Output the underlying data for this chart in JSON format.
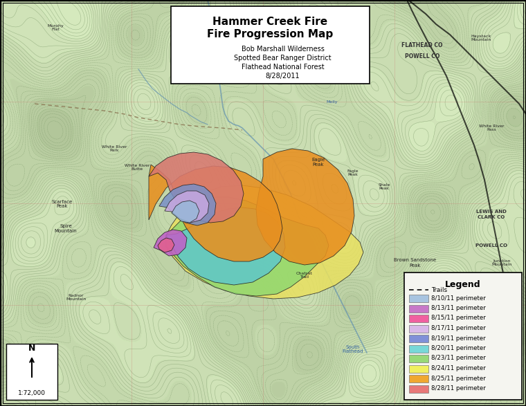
{
  "title_line1": "Hammer Creek Fire",
  "title_line2": "Fire Progression Map",
  "subtitle_lines": [
    "Bob Marshall Wilderness",
    "Spotted Bear Ranger District",
    "Flathead National Forest",
    "8/28/2011"
  ],
  "scale": "1:72,000",
  "background_map_color": "#c8d8b0",
  "legend_entries": [
    {
      "label": "8/10/11 perimeter",
      "color": "#a8c4e0"
    },
    {
      "label": "8/13/11 perimeter",
      "color": "#c878c8"
    },
    {
      "label": "8/15/11 perimeter",
      "color": "#f060a0"
    },
    {
      "label": "8/17/11 perimeter",
      "color": "#d8b8e8"
    },
    {
      "label": "8/19/11 perimeter",
      "color": "#8090d8"
    },
    {
      "label": "8/20/11 perimeter",
      "color": "#78d8d8"
    },
    {
      "label": "8/23/11 perimeter",
      "color": "#98d878"
    },
    {
      "label": "8/24/11 perimeter",
      "color": "#f0f060"
    },
    {
      "label": "8/25/11 perimeter",
      "color": "#f0a830"
    },
    {
      "label": "8/28/11 perimeter",
      "color": "#e87878"
    }
  ],
  "topo_line_color": "#7a9868",
  "border_color": "#000000",
  "title_box_color": "#ffffff",
  "legend_box_color": "#f5f5f0"
}
